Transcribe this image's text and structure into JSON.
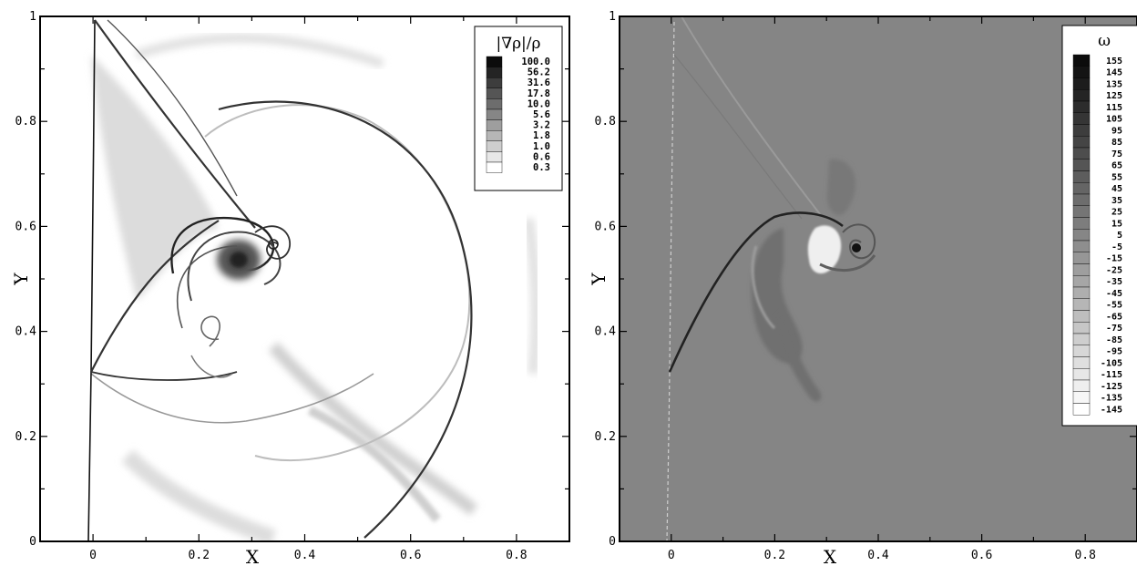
{
  "chart_data": [
    {
      "type": "heatmap",
      "title": "",
      "xlabel": "X",
      "ylabel": "Y",
      "xlim": [
        -0.1,
        0.9
      ],
      "ylim": [
        0,
        1
      ],
      "x_ticks": [
        "0",
        "0.2",
        "0.4",
        "0.6",
        "0.8"
      ],
      "y_ticks": [
        "0",
        "0.2",
        "0.4",
        "0.6",
        "0.8",
        "1"
      ],
      "x_tick_values": [
        0,
        0.2,
        0.4,
        0.6,
        0.8
      ],
      "y_tick_values": [
        0,
        0.2,
        0.4,
        0.6,
        0.8,
        1
      ],
      "background": "#ffffff",
      "legend": {
        "title": "|∇ρ|/ρ",
        "position": "top-right",
        "levels": [
          "100.0",
          "56.2",
          "31.6",
          "17.8",
          "10.0",
          "5.6",
          "3.2",
          "1.8",
          "1.0",
          "0.6",
          "0.3"
        ]
      }
    },
    {
      "type": "heatmap",
      "title": "",
      "xlabel": "X",
      "ylabel": "Y",
      "xlim": [
        -0.1,
        0.9
      ],
      "ylim": [
        0,
        1
      ],
      "x_ticks": [
        "0",
        "0.2",
        "0.4",
        "0.6",
        "0.8"
      ],
      "y_ticks": [
        "0",
        "0.2",
        "0.4",
        "0.6",
        "0.8",
        "1"
      ],
      "x_tick_values": [
        0,
        0.2,
        0.4,
        0.6,
        0.8
      ],
      "y_tick_values": [
        0,
        0.2,
        0.4,
        0.6,
        0.8,
        1
      ],
      "background": "#858585",
      "legend": {
        "title": "ω",
        "position": "top-right",
        "levels": [
          "155",
          "145",
          "135",
          "125",
          "115",
          "105",
          "95",
          "85",
          "75",
          "65",
          "55",
          "45",
          "35",
          "25",
          "15",
          "5",
          "-5",
          "-15",
          "-25",
          "-35",
          "-45",
          "-55",
          "-65",
          "-75",
          "-85",
          "-95",
          "-105",
          "-115",
          "-125",
          "-135",
          "-145"
        ]
      }
    }
  ]
}
